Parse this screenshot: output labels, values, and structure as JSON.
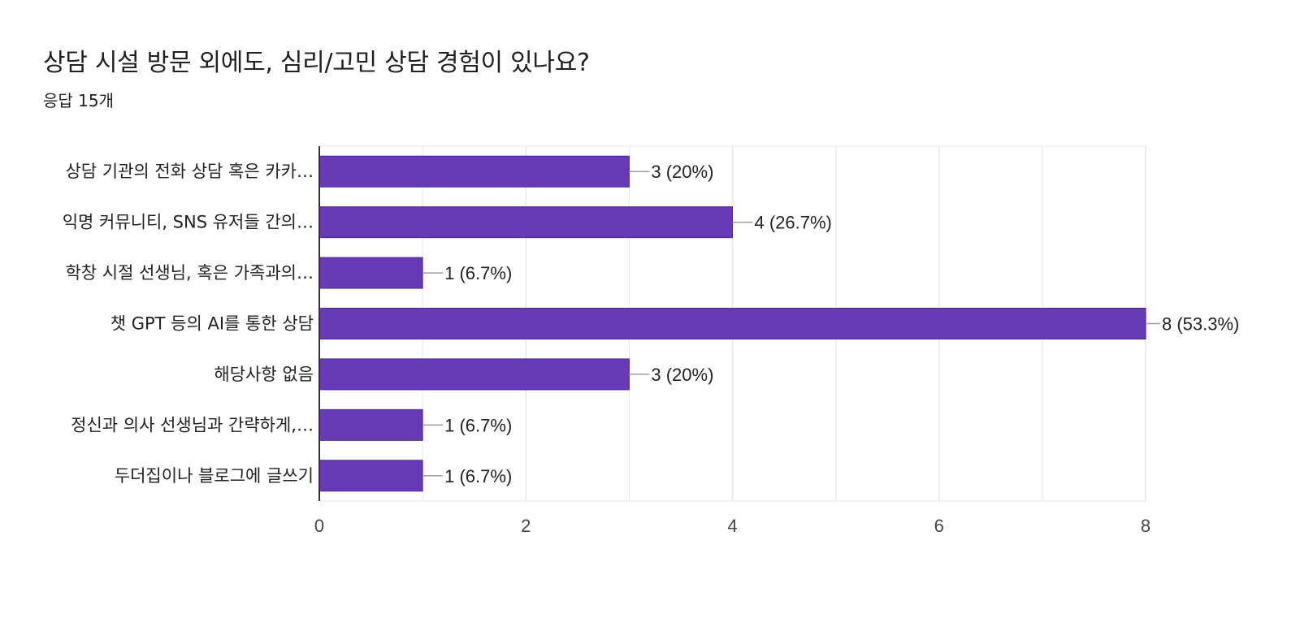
{
  "question": {
    "title": "상담 시설 방문 외에도, 심리/고민 상담 경험이 있나요?",
    "response_count": "응답 15개"
  },
  "colors": {
    "bar": "#673ab7",
    "grid": "#e8e8e8",
    "axis": "#333333",
    "leader": "#9e9e9e"
  },
  "chart_data": {
    "type": "bar",
    "orientation": "horizontal",
    "title": "",
    "xlabel": "",
    "ylabel": "",
    "xlim": [
      0,
      8
    ],
    "x_ticks": [
      0,
      2,
      4,
      6,
      8
    ],
    "grid": true,
    "categories": [
      "상담 기관의 전화 상담 혹은 카카…",
      "익명 커뮤니티, SNS 유저들 간의…",
      "학창 시절 선생님, 혹은 가족과의…",
      "챗 GPT 등의 AI를 통한 상담",
      "해당사항 없음",
      "정신과 의사 선생님과 간략하게,…",
      "두더집이나 블로그에 글쓰기"
    ],
    "values": [
      3,
      4,
      1,
      8,
      3,
      1,
      1
    ],
    "value_labels": [
      "3 (20%)",
      "4 (26.7%)",
      "1 (6.7%)",
      "8 (53.3%)",
      "3 (20%)",
      "1 (6.7%)",
      "1 (6.7%)"
    ]
  }
}
